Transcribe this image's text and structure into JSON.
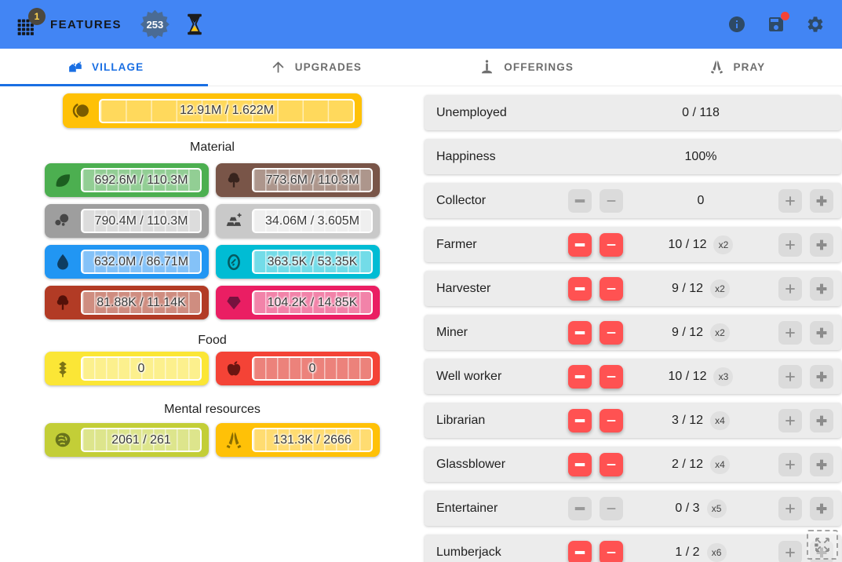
{
  "header": {
    "app_label": "FEATURES",
    "new_features_count": "1",
    "counter_badge": "253",
    "icons": [
      "apps-grid-icon",
      "hourglass-icon",
      "info-icon",
      "save-icon",
      "gear-icon"
    ],
    "save_has_notification": true,
    "colors": {
      "bar": "#4285F4",
      "icon": "#2E4A66",
      "counter_badge_bg": "#4A6B94",
      "notification_dot": "#F44336"
    }
  },
  "tabs": [
    {
      "label": "VILLAGE",
      "icon": "village-icon",
      "active": true
    },
    {
      "label": "UPGRADES",
      "icon": "arrow-up-icon",
      "active": false
    },
    {
      "label": "OFFERINGS",
      "icon": "candle-icon",
      "active": false
    },
    {
      "label": "PRAY",
      "icon": "pray-icon",
      "active": false
    }
  ],
  "active_tab_color": "#1A6FE3",
  "resources": {
    "currency": {
      "id": "coin",
      "value": "12.91M / 1.622M",
      "bg": "#FFC107",
      "fill": "#FFD95C",
      "icon_color": "#7A5C00"
    },
    "sections": [
      {
        "title": "Material",
        "bars": [
          {
            "id": "leaf",
            "value": "692.6M / 110.3M",
            "bg": "#4CAF50",
            "fill": "#92CE94",
            "icon_color": "#1C5E20"
          },
          {
            "id": "tree",
            "value": "773.6M / 110.3M",
            "bg": "#795548",
            "fill": "#AD968C",
            "icon_color": "#38241E"
          },
          {
            "id": "stone",
            "value": "790.4M / 110.3M",
            "bg": "#9E9E9E",
            "fill": "#DCDCDC",
            "icon_color": "#474747"
          },
          {
            "id": "ingots",
            "value": "34.06M / 3.605M",
            "bg": "#C9C9C9",
            "fill": "#EFEFEF",
            "icon_color": "#474747"
          },
          {
            "id": "drop",
            "value": "632.0M / 86.71M",
            "bg": "#2196F3",
            "fill": "#84C2F8",
            "icon_color": "#0E3D61"
          },
          {
            "id": "mirror",
            "value": "363.5K / 53.35K",
            "bg": "#00BCD4",
            "fill": "#73DCE8",
            "icon_color": "#055A60"
          },
          {
            "id": "dark-tree",
            "value": "81.88K / 11.14K",
            "bg": "#B23B25",
            "fill": "#CF8D80",
            "icon_color": "#541109"
          },
          {
            "id": "gem",
            "value": "104.2K / 14.85K",
            "bg": "#EA1E63",
            "fill": "#F283A9",
            "icon_color": "#77123F"
          }
        ]
      },
      {
        "title": "Food",
        "bars": [
          {
            "id": "wheat",
            "value": "0",
            "bg": "#FBE636",
            "fill": "#FCF08D",
            "icon_color": "#7C7315"
          },
          {
            "id": "apple",
            "value": "0",
            "bg": "#F44336",
            "fill": "#EC827B",
            "icon_color": "#6B1511"
          }
        ]
      },
      {
        "title": "Mental resources",
        "bars": [
          {
            "id": "brain",
            "value": "2061 / 261",
            "bg": "#C3CE37",
            "fill": "#DDE58C",
            "icon_color": "#68731C"
          },
          {
            "id": "praying-hands",
            "value": "131.3K / 2666",
            "bg": "#FFC107",
            "fill": "#FFDC71",
            "icon_color": "#8A6D00"
          }
        ]
      }
    ]
  },
  "population": {
    "rows": [
      {
        "label": "Unemployed",
        "value": "0 / 118",
        "chip": null,
        "has_buttons": false,
        "minus_enabled": false
      },
      {
        "label": "Happiness",
        "value": "100%",
        "chip": null,
        "has_buttons": false,
        "minus_enabled": false
      },
      {
        "label": "Collector",
        "value": "0",
        "chip": null,
        "has_buttons": true,
        "minus_enabled": false
      },
      {
        "label": "Farmer",
        "value": "10 / 12",
        "chip": "x2",
        "has_buttons": true,
        "minus_enabled": true
      },
      {
        "label": "Harvester",
        "value": "9 / 12",
        "chip": "x2",
        "has_buttons": true,
        "minus_enabled": true
      },
      {
        "label": "Miner",
        "value": "9 / 12",
        "chip": "x2",
        "has_buttons": true,
        "minus_enabled": true
      },
      {
        "label": "Well worker",
        "value": "10 / 12",
        "chip": "x3",
        "has_buttons": true,
        "minus_enabled": true
      },
      {
        "label": "Librarian",
        "value": "3 / 12",
        "chip": "x4",
        "has_buttons": true,
        "minus_enabled": true
      },
      {
        "label": "Glassblower",
        "value": "2 / 12",
        "chip": "x4",
        "has_buttons": true,
        "minus_enabled": true
      },
      {
        "label": "Entertainer",
        "value": "0 / 3",
        "chip": "x5",
        "has_buttons": true,
        "minus_enabled": false
      },
      {
        "label": "Lumberjack",
        "value": "1 / 2",
        "chip": "x6",
        "has_buttons": true,
        "minus_enabled": true
      }
    ],
    "button_colors": {
      "minus_active": "#FF5252",
      "disabled": "#DBDBDB"
    }
  }
}
